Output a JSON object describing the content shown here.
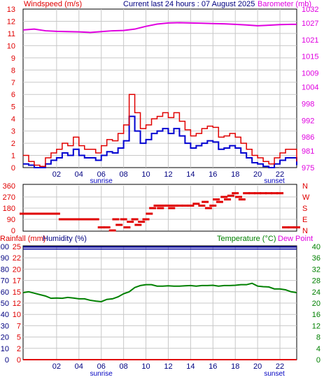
{
  "header": {
    "left_label": "Windspeed (m/s)",
    "center_label": "Current last 24 hours : 07 August 2025",
    "right_label": "Barometer (mb)"
  },
  "lower_header": {
    "rainfall_label": "Rainfall (mm)",
    "humidity_label": "Humidity (%)",
    "temperature_label": "Temperature (°C)",
    "dewpoint_label": "Dew Point"
  },
  "colors": {
    "wind": "#e00000",
    "gust_blue": "#0000d0",
    "barometer": "#e000e0",
    "direction": "#e00000",
    "temperature": "#008000",
    "humidity": "#0000a0",
    "rainfall": "#e00000",
    "sunlabel": "#0000c0",
    "grid": "#c8c8c8"
  },
  "chart_data": [
    {
      "id": "wind_baro",
      "type": "line",
      "title": "Current last 24 hours : 07 August 2025",
      "ylabel": "Windspeed (m/s)",
      "y2label": "Barometer (mb)",
      "xlim": [
        23,
        47.5
      ],
      "ylim": [
        0,
        13
      ],
      "y2lim": [
        975,
        1032
      ],
      "x_ticks": [
        "02",
        "04",
        "06",
        "08",
        "10",
        "12",
        "14",
        "16",
        "18",
        "20",
        "22"
      ],
      "y_ticks": [
        0,
        1,
        2,
        3,
        4,
        5,
        6,
        7,
        8,
        9,
        10,
        11,
        12,
        13
      ],
      "y2_ticks": [
        975,
        981,
        986,
        992,
        998,
        1004,
        1009,
        1015,
        1021,
        1027,
        1032
      ],
      "annotations": [
        {
          "x": 30,
          "text": "sunrise"
        },
        {
          "x": 45.5,
          "text": "sunset"
        }
      ],
      "series": [
        {
          "name": "Windspeed",
          "x": [
            23.0,
            23.5,
            24.0,
            24.5,
            25.0,
            25.5,
            26.0,
            26.5,
            27.0,
            27.5,
            28.0,
            28.5,
            29.0,
            29.5,
            30.0,
            30.5,
            31.0,
            31.5,
            32.0,
            32.5,
            33.0,
            33.5,
            34.0,
            34.5,
            35.0,
            35.5,
            36.0,
            36.5,
            37.0,
            37.5,
            38.0,
            38.5,
            39.0,
            39.5,
            40.0,
            40.5,
            41.0,
            41.5,
            42.0,
            42.5,
            43.0,
            43.5,
            44.0,
            44.5,
            45.0,
            45.5,
            46.0,
            46.5,
            47.0,
            47.5
          ],
          "values": [
            1,
            0.5,
            0.2,
            0.1,
            0.8,
            1.2,
            1.5,
            2,
            1.8,
            2.5,
            1.8,
            1.5,
            1.5,
            1.2,
            1.8,
            2.3,
            2.2,
            2.8,
            3.5,
            6,
            4.5,
            3.2,
            3.5,
            4,
            4.2,
            4.5,
            4.1,
            4.5,
            3.8,
            3.1,
            2.6,
            2.8,
            3.2,
            3.4,
            3.3,
            2.5,
            2.6,
            2.8,
            2.5,
            2,
            1.5,
            1,
            0.8,
            0.5,
            0.3,
            0.8,
            1.2,
            1.5,
            1.5,
            0.5
          ]
        },
        {
          "name": "Average",
          "x": [
            23.0,
            23.5,
            24.0,
            24.5,
            25.0,
            25.5,
            26.0,
            26.5,
            27.0,
            27.5,
            28.0,
            28.5,
            29.0,
            29.5,
            30.0,
            30.5,
            31.0,
            31.5,
            32.0,
            32.5,
            33.0,
            33.5,
            34.0,
            34.5,
            35.0,
            35.5,
            36.0,
            36.5,
            37.0,
            37.5,
            38.0,
            38.5,
            39.0,
            39.5,
            40.0,
            40.5,
            41.0,
            41.5,
            42.0,
            42.5,
            43.0,
            43.5,
            44.0,
            44.5,
            45.0,
            45.5,
            46.0,
            46.5,
            47.0,
            47.5
          ],
          "values": [
            0.3,
            0.2,
            0,
            0,
            0.3,
            0.6,
            0.8,
            1.2,
            1,
            1.5,
            1,
            0.8,
            0.8,
            0.6,
            1,
            1.3,
            1.2,
            1.6,
            2.2,
            4.2,
            3,
            2,
            2.3,
            2.8,
            3,
            3.2,
            2.8,
            3.2,
            2.6,
            2,
            1.6,
            1.8,
            2,
            2.2,
            2.1,
            1.5,
            1.6,
            1.8,
            1.6,
            1.2,
            0.8,
            0.4,
            0.3,
            0.1,
            0,
            0.3,
            0.6,
            0.8,
            0.8,
            0.2
          ]
        },
        {
          "name": "Barometer",
          "x": [
            23,
            24,
            25,
            26,
            27,
            28,
            29,
            30,
            31,
            32,
            33,
            34,
            35,
            36,
            37,
            38,
            39,
            40,
            41,
            42,
            43,
            44,
            45,
            46,
            47,
            47.5
          ],
          "values": [
            1024.5,
            1024.8,
            1024.2,
            1024.0,
            1023.9,
            1023.8,
            1023.6,
            1023.9,
            1024.2,
            1024.3,
            1024.8,
            1025.8,
            1026.6,
            1027.0,
            1027.1,
            1027.0,
            1026.9,
            1026.8,
            1026.7,
            1026.5,
            1026.3,
            1026.0,
            1026.2,
            1026.4,
            1026.5,
            1026.5
          ]
        }
      ]
    },
    {
      "id": "direction",
      "type": "scatter",
      "ylabel_left": [
        "360",
        "270",
        "180",
        "90",
        "0"
      ],
      "ylabel_right": [
        "N",
        "W",
        "S",
        "E",
        "N"
      ],
      "ylim": [
        0,
        360
      ],
      "xlim": [
        23,
        47.5
      ],
      "series": [
        {
          "name": "Wind Direction",
          "x": [
            23,
            23.5,
            24,
            24.5,
            25,
            25.5,
            26,
            26.5,
            27,
            27.5,
            28,
            28.5,
            29,
            29.5,
            30,
            30.5,
            31,
            31.3,
            31.6,
            32,
            32.3,
            32.6,
            33,
            33.3,
            33.6,
            34,
            34.3,
            34.6,
            35,
            35.3,
            35.6,
            36,
            36.3,
            36.6,
            37,
            37.5,
            38,
            38.5,
            39,
            39.3,
            39.6,
            40,
            40.3,
            40.6,
            41,
            41.3,
            41.6,
            42,
            42.3,
            42.6,
            43,
            43.5,
            44,
            44.5,
            45,
            45.5,
            46,
            46.5,
            47,
            47.5
          ],
          "values": [
            135,
            135,
            135,
            135,
            135,
            135,
            135,
            90,
            90,
            90,
            90,
            90,
            90,
            90,
            25,
            25,
            0,
            90,
            45,
            90,
            25,
            70,
            90,
            45,
            70,
            90,
            135,
            180,
            200,
            180,
            200,
            200,
            180,
            200,
            200,
            200,
            200,
            215,
            200,
            230,
            180,
            200,
            250,
            230,
            270,
            250,
            280,
            300,
            270,
            250,
            300,
            300,
            300,
            300,
            300,
            300,
            300,
            25,
            25,
            25
          ]
        }
      ]
    },
    {
      "id": "temp_hum",
      "type": "line",
      "ylabel": "Rainfall (mm) Humidity (%)",
      "y2label": "Temperature (°C)",
      "xlim": [
        23,
        47.5
      ],
      "y_ticks_hum": [
        0,
        10,
        20,
        30,
        40,
        50,
        60,
        70,
        80,
        90,
        100
      ],
      "y_ticks_rain": [
        0,
        2,
        5,
        7,
        10,
        12,
        15,
        17,
        20,
        22,
        25
      ],
      "y2_ticks": [
        0,
        4,
        8,
        12,
        16,
        20,
        24,
        28,
        32,
        36,
        40
      ],
      "ylim": [
        0,
        100
      ],
      "y2lim": [
        0,
        40
      ],
      "x_ticks": [
        "02",
        "04",
        "06",
        "08",
        "10",
        "12",
        "14",
        "16",
        "18",
        "20",
        "22"
      ],
      "annotations": [
        {
          "x": 30,
          "text": "sunrise"
        },
        {
          "x": 45.5,
          "text": "sunset"
        }
      ],
      "series": [
        {
          "name": "Temperature",
          "x": [
            23,
            23.5,
            24,
            24.5,
            25,
            25.5,
            26,
            26.5,
            27,
            27.5,
            28,
            28.5,
            29,
            29.5,
            30,
            30.5,
            31,
            31.5,
            32,
            32.5,
            33,
            33.5,
            34,
            34.5,
            35,
            35.5,
            36,
            36.5,
            37,
            37.5,
            38,
            38.5,
            39,
            39.5,
            40,
            40.5,
            41,
            41.5,
            42,
            42.5,
            43,
            43.5,
            44,
            44.5,
            45,
            45.5,
            46,
            46.5,
            47,
            47.5
          ],
          "values": [
            23.7,
            24.0,
            23.5,
            23.0,
            22.5,
            21.7,
            21.8,
            21.7,
            22.0,
            21.8,
            21.5,
            21.5,
            21.0,
            20.7,
            20.5,
            21.3,
            21.5,
            22.2,
            23.3,
            24.0,
            25.5,
            26.2,
            26.5,
            26.5,
            26.0,
            26.0,
            26.1,
            26.0,
            26.0,
            26.1,
            26.2,
            26.0,
            26.2,
            26.2,
            26.3,
            26.0,
            26.2,
            26.2,
            26.3,
            26.5,
            26.5,
            27.0,
            26.0,
            25.8,
            25.7,
            25.0,
            25.0,
            24.7,
            24.0,
            23.7
          ]
        },
        {
          "name": "Humidity",
          "x": [
            23,
            47.5
          ],
          "values": [
            99,
            99
          ]
        },
        {
          "name": "Rainfall",
          "x": [
            23,
            47.5
          ],
          "values": [
            0,
            0
          ]
        }
      ]
    }
  ]
}
